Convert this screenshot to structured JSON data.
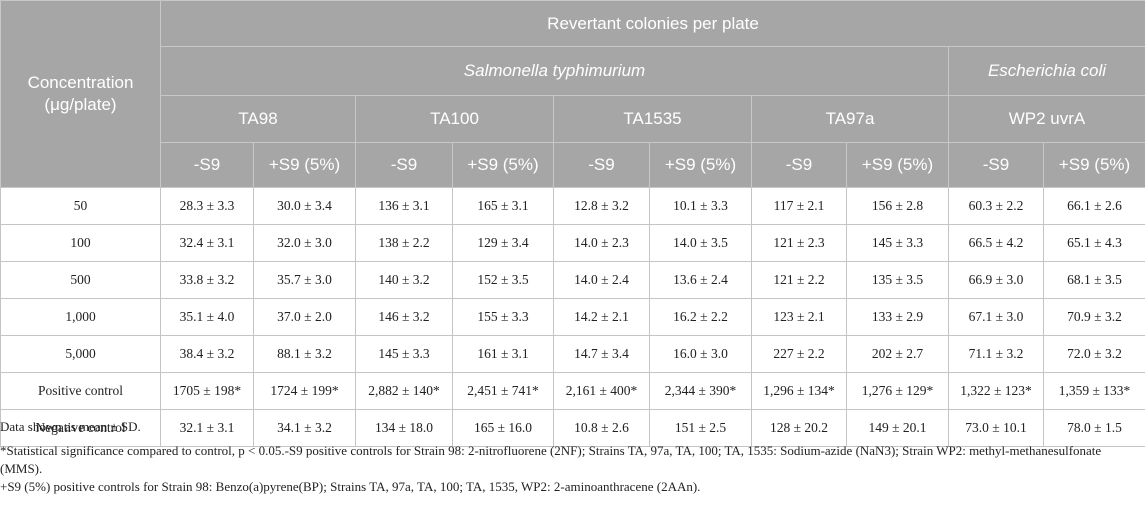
{
  "header": {
    "concentration_label_line1": "Concentration",
    "concentration_label_line2": "(μg/plate)",
    "revertant_label": "Revertant colonies per plate",
    "species_1": "Salmonella typhimurium",
    "species_2": "Escherichia coli",
    "strains": [
      "TA98",
      "TA100",
      "TA1535",
      "TA97a",
      "WP2 uvrA"
    ],
    "conditions": [
      "-S9",
      "+S9 (5%)"
    ]
  },
  "rows": [
    {
      "label": "50",
      "cells": [
        "28.3 ± 3.3",
        "30.0 ± 3.4",
        "136 ± 3.1",
        "165 ± 3.1",
        "12.8 ± 3.2",
        "10.1 ± 3.3",
        "117 ± 2.1",
        "156 ± 2.8",
        "60.3 ± 2.2",
        "66.1 ± 2.6"
      ]
    },
    {
      "label": "100",
      "cells": [
        "32.4 ± 3.1",
        "32.0 ± 3.0",
        "138 ± 2.2",
        "129 ± 3.4",
        "14.0 ± 2.3",
        "14.0 ± 3.5",
        "121 ± 2.3",
        "145 ± 3.3",
        "66.5 ± 4.2",
        "65.1 ± 4.3"
      ]
    },
    {
      "label": "500",
      "cells": [
        "33.8 ± 3.2",
        "35.7 ± 3.0",
        "140 ± 3.2",
        "152 ± 3.5",
        "14.0 ± 2.4",
        "13.6 ± 2.4",
        "121 ± 2.2",
        "135 ± 3.5",
        "66.9 ± 3.0",
        "68.1 ± 3.5"
      ]
    },
    {
      "label": "1,000",
      "cells": [
        "35.1 ± 4.0",
        "37.0 ± 2.0",
        "146 ± 3.2",
        "155 ± 3.3",
        "14.2 ± 2.1",
        "16.2 ± 2.2",
        "123 ± 2.1",
        "133 ± 2.9",
        "67.1 ± 3.0",
        "70.9 ± 3.2"
      ]
    },
    {
      "label": "5,000",
      "cells": [
        "38.4 ± 3.2",
        "88.1 ± 3.2",
        "145 ± 3.3",
        "161 ± 3.1",
        "14.7 ± 3.4",
        "16.0 ± 3.0",
        "227 ± 2.2",
        "202 ± 2.7",
        "71.1 ± 3.2",
        "72.0 ± 3.2"
      ]
    },
    {
      "label": "Positive control",
      "cells": [
        "1705 ± 198*",
        "1724 ± 199*",
        "2,882 ± 140*",
        "2,451 ± 741*",
        "2,161 ± 400*",
        "2,344 ± 390*",
        "1,296 ± 134*",
        "1,276 ± 129*",
        "1,322 ± 123*",
        "1,359 ± 133*"
      ]
    },
    {
      "label": "Negative control",
      "cells": [
        "32.1 ± 3.1",
        "34.1 ± 3.2",
        "134 ± 18.0",
        "165 ± 16.0",
        "10.8 ± 2.6",
        "151 ± 2.5",
        "128 ± 20.2",
        "149 ± 20.1",
        "73.0 ± 10.1",
        "78.0 ± 1.5"
      ]
    }
  ],
  "notes": {
    "line1": "Data shown as mean ± SD.",
    "line2": "*Statistical significance compared to control, p < 0.05.-S9 positive controls for Strain 98: 2-nitrofluorene (2NF); Strains TA, 97a, TA, 100; TA, 1535: Sodium-azide (NaN3); Strain WP2: methyl-methanesulfonate (MMS).",
    "line3": "+S9 (5%) positive controls for Strain 98: Benzo(a)pyrene(BP); Strains TA, 97a, TA, 100; TA, 1535, WP2: 2-aminoanthracene (2AAn)."
  }
}
